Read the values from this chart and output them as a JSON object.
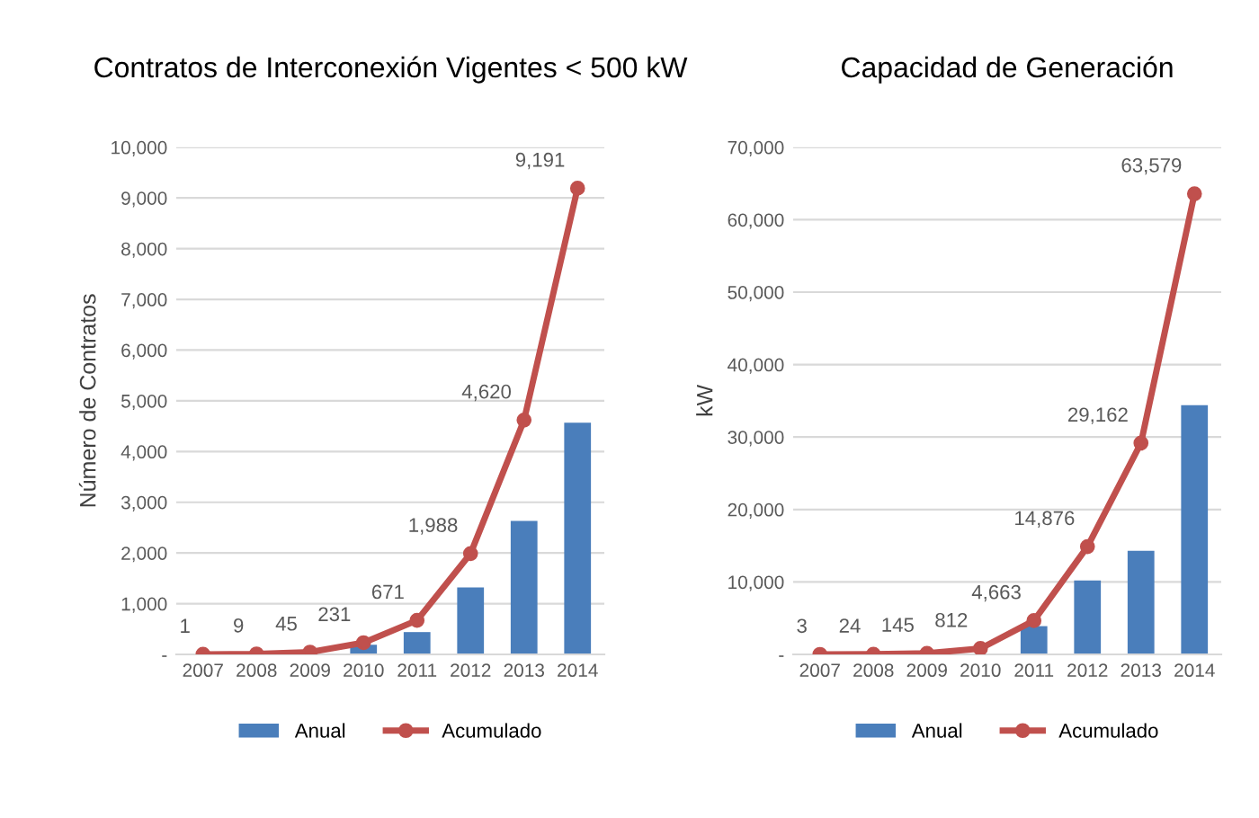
{
  "chart_data": [
    {
      "type": "bar",
      "title": "Contratos de Interconexión Vigentes < 500 kW",
      "ylabel": "Número de Contratos",
      "categories": [
        "2007",
        "2008",
        "2009",
        "2010",
        "2011",
        "2012",
        "2013",
        "2014"
      ],
      "series": [
        {
          "name": "Anual",
          "color": "#4a7ebb",
          "values": [
            0,
            null,
            null,
            190,
            440,
            1320,
            2630,
            4570
          ]
        },
        {
          "name": "Acumulado",
          "type": "line",
          "color": "#c0504d",
          "marker": "circle",
          "values": [
            1,
            9,
            45,
            231,
            671,
            1988,
            4620,
            9191
          ],
          "value_labels": [
            "1",
            "9",
            "45",
            "231",
            "671",
            "1,988",
            "4,620",
            "9,191"
          ]
        }
      ],
      "ylim": [
        0,
        10000
      ],
      "yticks": [
        {
          "value": 0,
          "label": "-"
        },
        {
          "value": 1000,
          "label": "1,000"
        },
        {
          "value": 2000,
          "label": "2,000"
        },
        {
          "value": 3000,
          "label": "3,000"
        },
        {
          "value": 4000,
          "label": "4,000"
        },
        {
          "value": 5000,
          "label": "5,000"
        },
        {
          "value": 6000,
          "label": "6,000"
        },
        {
          "value": 7000,
          "label": "7,000"
        },
        {
          "value": 8000,
          "label": "8,000"
        },
        {
          "value": 9000,
          "label": "9,000"
        },
        {
          "value": 10000,
          "label": "10,000"
        }
      ],
      "grid": "y",
      "legend": "bottom"
    },
    {
      "type": "bar",
      "title": "Capacidad de Generación",
      "ylabel": "kW",
      "categories": [
        "2007",
        "2008",
        "2009",
        "2010",
        "2011",
        "2012",
        "2013",
        "2014"
      ],
      "series": [
        {
          "name": "Anual",
          "color": "#4a7ebb",
          "values": [
            0,
            0,
            null,
            null,
            3900,
            10200,
            14300,
            34400
          ]
        },
        {
          "name": "Acumulado",
          "type": "line",
          "color": "#c0504d",
          "marker": "circle",
          "values": [
            3,
            24,
            145,
            812,
            4663,
            14876,
            29162,
            63579
          ],
          "value_labels": [
            "3",
            "24",
            "145",
            "812",
            "4,663",
            "14,876",
            "29,162",
            "63,579"
          ]
        }
      ],
      "ylim": [
        0,
        70000
      ],
      "yticks": [
        {
          "value": 0,
          "label": "-"
        },
        {
          "value": 10000,
          "label": "10,000"
        },
        {
          "value": 20000,
          "label": "20,000"
        },
        {
          "value": 30000,
          "label": "30,000"
        },
        {
          "value": 40000,
          "label": "40,000"
        },
        {
          "value": 50000,
          "label": "50,000"
        },
        {
          "value": 60000,
          "label": "60,000"
        },
        {
          "value": 70000,
          "label": "70,000"
        }
      ],
      "grid": "y",
      "legend": "bottom"
    }
  ]
}
